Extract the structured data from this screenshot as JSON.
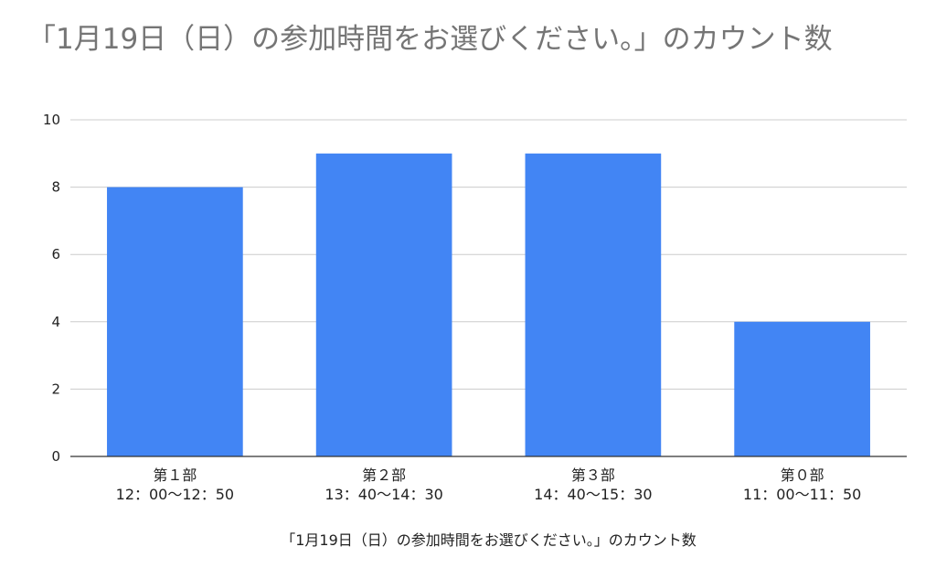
{
  "chart_data": {
    "type": "bar",
    "title": "「1月19日（日）の参加時間をお選びください。」のカウント数",
    "xlabel": "「1月19日（日）の参加時間をお選びください。」のカウント数",
    "ylabel": "",
    "categories": [
      [
        "第１部",
        "12：00〜12：50"
      ],
      [
        "第２部",
        "13：40〜14：30"
      ],
      [
        "第３部",
        "14：40〜15：30"
      ],
      [
        "第０部",
        "11：00〜11：50"
      ]
    ],
    "values": [
      8,
      9,
      9,
      4
    ],
    "ylim": [
      0,
      10
    ],
    "yticks": [
      "0",
      "2",
      "4",
      "6",
      "8",
      "10"
    ],
    "grid": true,
    "colors": {
      "bar": "#4285f4",
      "grid": "#cccccc",
      "axis": "#333333"
    }
  }
}
